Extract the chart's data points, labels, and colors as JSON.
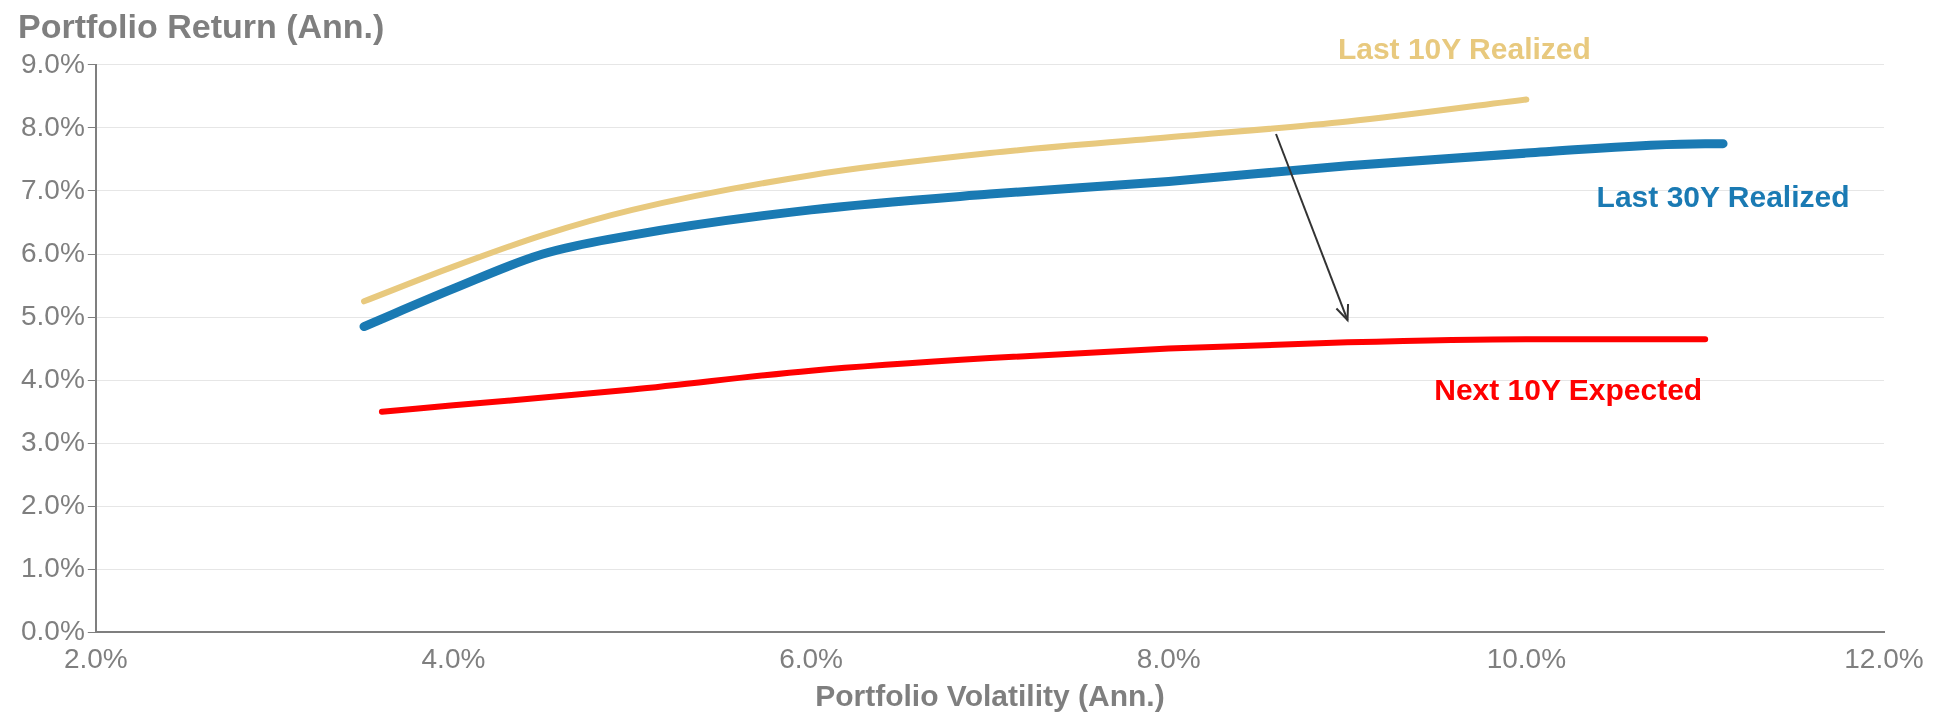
{
  "chart_data": {
    "type": "line",
    "ylabel": "Portfolio Return (Ann.)",
    "xlabel": "Portfolio Volatility (Ann.)",
    "xlim": [
      2,
      12
    ],
    "xticks": [
      {
        "value": 2,
        "label": "2.0%"
      },
      {
        "value": 4,
        "label": "4.0%"
      },
      {
        "value": 6,
        "label": "6.0%"
      },
      {
        "value": 8,
        "label": "8.0%"
      },
      {
        "value": 10,
        "label": "10.0%"
      },
      {
        "value": 12,
        "label": "12.0%"
      }
    ],
    "ylim": [
      0,
      9
    ],
    "yticks": [
      {
        "value": 0,
        "label": "0.0%"
      },
      {
        "value": 1,
        "label": "1.0%"
      },
      {
        "value": 2,
        "label": "2.0%"
      },
      {
        "value": 3,
        "label": "3.0%"
      },
      {
        "value": 4,
        "label": "4.0%"
      },
      {
        "value": 5,
        "label": "5.0%"
      },
      {
        "value": 6,
        "label": "6.0%"
      },
      {
        "value": 7,
        "label": "7.0%"
      },
      {
        "value": 8,
        "label": "8.0%"
      },
      {
        "value": 9,
        "label": "9.0%"
      }
    ],
    "grid": "y",
    "legend": false,
    "marker": "none",
    "line_style": "solid",
    "series": [
      {
        "name": "Last 10Y Realized",
        "color": "#e8c97e",
        "x": [
          3.5,
          4,
          4.5,
          5,
          6,
          7,
          8,
          9,
          10
        ],
        "values": [
          5.25,
          5.8,
          6.3,
          6.7,
          7.25,
          7.6,
          7.85,
          8.1,
          8.45
        ]
      },
      {
        "name": "Last 30Y Realized",
        "color": "#1a7ab3",
        "x": [
          3.5,
          4,
          4.5,
          5,
          6,
          7,
          8,
          9,
          10,
          11,
          11.1
        ],
        "values": [
          4.85,
          5.45,
          6.0,
          6.3,
          6.7,
          6.95,
          7.15,
          7.4,
          7.6,
          7.75,
          7.75
        ]
      },
      {
        "name": "Next 10Y Expected",
        "color": "#ff0000",
        "x": [
          3.6,
          4,
          5,
          6,
          7,
          8,
          9,
          10,
          11
        ],
        "values": [
          3.5,
          3.6,
          3.85,
          4.15,
          4.35,
          4.5,
          4.6,
          4.65,
          4.65
        ]
      }
    ]
  }
}
